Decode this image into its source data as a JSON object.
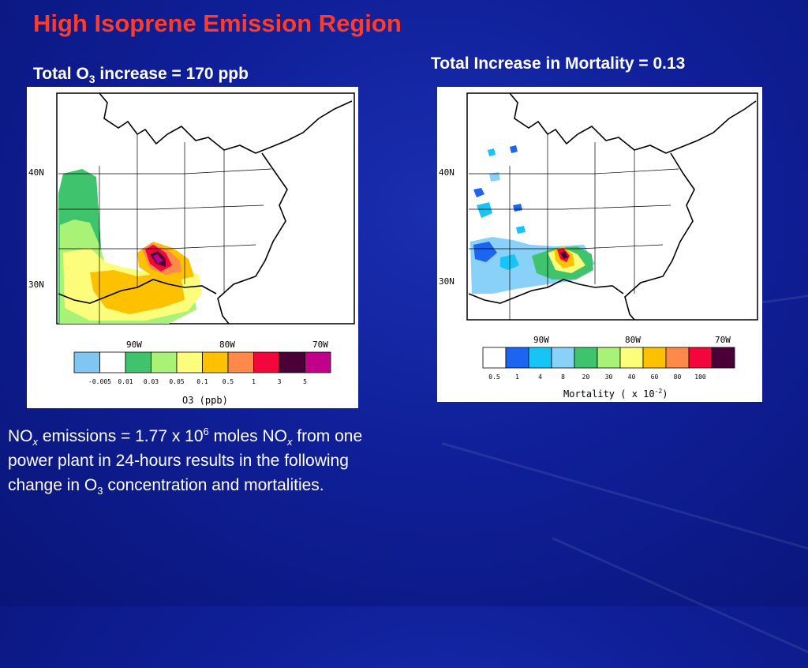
{
  "slide": {
    "title": "High Isoprene Emission Region",
    "left_heading": {
      "prefix": "Total O",
      "sub": "3",
      "suffix": " increase = 170 ppb"
    },
    "right_heading": "Total Increase in Mortality = 0.13",
    "body": {
      "p1": "NO",
      "x1": "x",
      "p2": " emissions = 1.77 x 10",
      "sup": "6",
      "p3": " moles NO",
      "x2": "x",
      "p4": " from one power plant in 24-hours results in the following change in O",
      "sub": "3",
      "p5": " concentration and mortalities."
    }
  },
  "maps": {
    "lat_labels": [
      "40N",
      "30N"
    ],
    "lon_labels": [
      "90W",
      "80W",
      "70W"
    ]
  },
  "o3_map": {
    "legend_ticks": [
      "-0.005",
      "0.01",
      "0.03",
      "0.05",
      "0.1",
      "0.5",
      "1",
      "3",
      "5"
    ],
    "legend_colors": [
      "#7fc7f2",
      "#ffffff",
      "#3fc46d",
      "#a9f278",
      "#fdfd7c",
      "#fdc100",
      "#fd8a4b",
      "#f2063b",
      "#4a0036",
      "#c2008a"
    ],
    "legend_title": "O3 (ppb)"
  },
  "mortality_map": {
    "legend_ticks": [
      "0.5",
      "1",
      "4",
      "8",
      "20",
      "30",
      "40",
      "60",
      "80",
      "100"
    ],
    "legend_colors": [
      "#ffffff",
      "#1c64f2",
      "#17c4f6",
      "#8ad1f9",
      "#3fc46d",
      "#a9f278",
      "#fdfd7c",
      "#fdc100",
      "#fd8a4b",
      "#f2063b",
      "#4a0036"
    ],
    "legend_title": "Mortality ( x 10",
    "legend_title_exp": "-2",
    "legend_title_end": ")"
  }
}
